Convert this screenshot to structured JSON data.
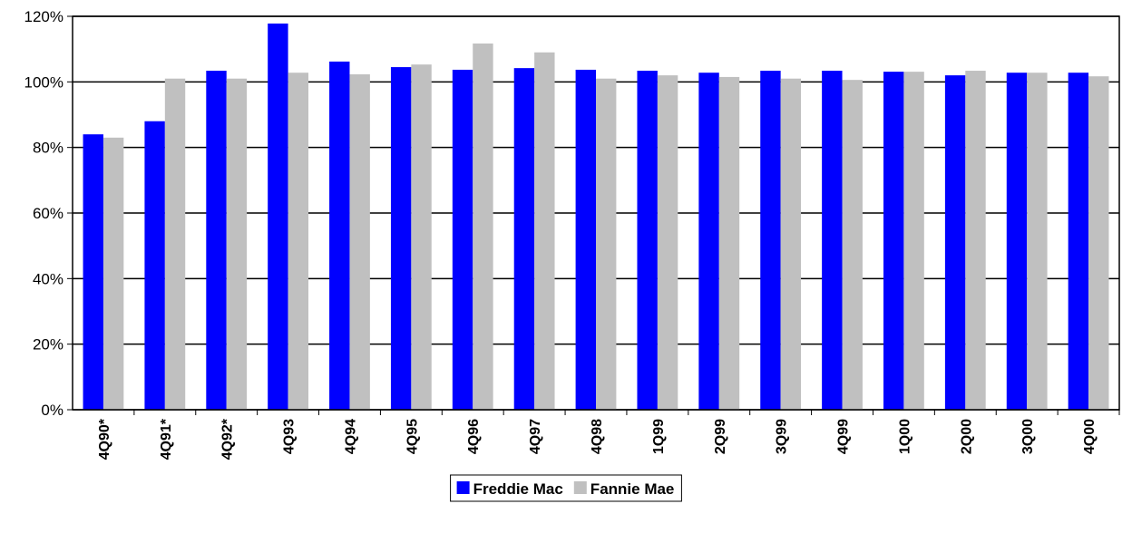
{
  "chart_data": {
    "type": "bar",
    "categories": [
      "4Q90*",
      "4Q91*",
      "4Q92*",
      "4Q93",
      "4Q94",
      "4Q95",
      "4Q96",
      "4Q97",
      "4Q98",
      "1Q99",
      "2Q99",
      "3Q99",
      "4Q99",
      "1Q00",
      "2Q00",
      "3Q00",
      "4Q00"
    ],
    "series": [
      {
        "name": "Freddie Mac",
        "color": "#0000ff",
        "values": [
          84,
          88,
          103.4,
          117.8,
          106.2,
          104.5,
          103.7,
          104.2,
          103.7,
          103.4,
          102.8,
          103.4,
          103.4,
          103.1,
          102,
          102.8,
          102.8
        ]
      },
      {
        "name": "Fannie Mae",
        "color": "#c0c0c0",
        "values": [
          83,
          101,
          101,
          102.8,
          102.3,
          105.3,
          111.7,
          109,
          101,
          102,
          101.5,
          101,
          100.6,
          103.1,
          103.4,
          102.8,
          101.7
        ]
      }
    ],
    "ylim": [
      0,
      120
    ],
    "yticks": [
      {
        "value": 0,
        "label": "0%"
      },
      {
        "value": 20,
        "label": "20%"
      },
      {
        "value": 40,
        "label": "40%"
      },
      {
        "value": 60,
        "label": "60%"
      },
      {
        "value": 80,
        "label": "80%"
      },
      {
        "value": 100,
        "label": "100%"
      },
      {
        "value": 120,
        "label": "120%"
      }
    ],
    "grid": true,
    "legend": "bottom"
  }
}
